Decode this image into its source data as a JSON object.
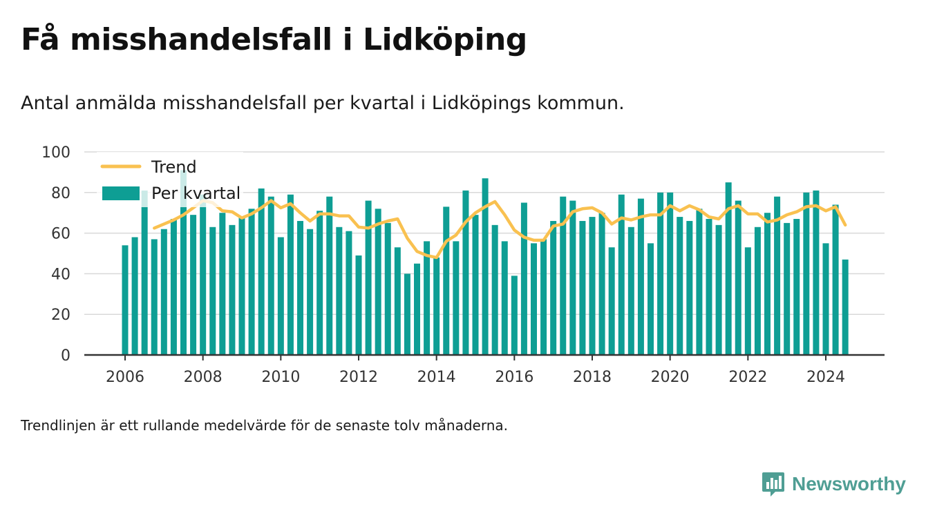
{
  "title": "Få misshandelsfall i Lidköping",
  "subtitle": "Antal anmälda misshandelsfall per kvartal i Lidköpings kommun.",
  "note": "Trendlinjen är ett rullande medelvärde för de senaste tolv månaderna.",
  "brand": "Newsworthy",
  "colors": {
    "bars": "#0e9e94",
    "trend": "#f9c150",
    "grid": "#d9d9d9",
    "axis": "#333333"
  },
  "chart_data": {
    "type": "bar",
    "ylim": [
      0,
      100
    ],
    "yticks": [
      0,
      20,
      40,
      60,
      80,
      100
    ],
    "xticks": [
      2006,
      2008,
      2010,
      2012,
      2014,
      2016,
      2018,
      2020,
      2022,
      2024
    ],
    "xlim": [
      2005,
      2025.5
    ],
    "grid": true,
    "legend_position": "top-left",
    "x": [
      2006.0,
      2006.25,
      2006.5,
      2006.75,
      2007.0,
      2007.25,
      2007.5,
      2007.75,
      2008.0,
      2008.25,
      2008.5,
      2008.75,
      2009.0,
      2009.25,
      2009.5,
      2009.75,
      2010.0,
      2010.25,
      2010.5,
      2010.75,
      2011.0,
      2011.25,
      2011.5,
      2011.75,
      2012.0,
      2012.25,
      2012.5,
      2012.75,
      2013.0,
      2013.25,
      2013.5,
      2013.75,
      2014.0,
      2014.25,
      2014.5,
      2014.75,
      2015.0,
      2015.25,
      2015.5,
      2015.75,
      2016.0,
      2016.25,
      2016.5,
      2016.75,
      2017.0,
      2017.25,
      2017.5,
      2017.75,
      2018.0,
      2018.25,
      2018.5,
      2018.75,
      2019.0,
      2019.25,
      2019.5,
      2019.75,
      2020.0,
      2020.25,
      2020.5,
      2020.75,
      2021.0,
      2021.25,
      2021.5,
      2021.75,
      2022.0,
      2022.25,
      2022.5,
      2022.75,
      2023.0,
      2023.25,
      2023.5,
      2023.75,
      2024.0,
      2024.25,
      2024.5
    ],
    "series": [
      {
        "name": "Per kvartal",
        "type": "bar",
        "values": [
          54,
          58,
          81,
          57,
          62,
          67,
          91,
          69,
          79,
          63,
          70,
          64,
          68,
          72,
          82,
          78,
          58,
          79,
          66,
          62,
          71,
          78,
          63,
          61,
          49,
          76,
          72,
          65,
          53,
          40,
          45,
          56,
          48,
          73,
          56,
          81,
          69,
          87,
          64,
          56,
          39,
          75,
          55,
          57,
          66,
          78,
          76,
          66,
          68,
          70,
          53,
          79,
          63,
          77,
          55,
          80,
          80,
          68,
          66,
          72,
          67,
          64,
          85,
          76,
          53,
          63,
          70,
          78,
          65,
          67,
          80,
          81,
          55,
          74,
          47
        ]
      },
      {
        "name": "Trend",
        "type": "line",
        "values": [
          null,
          null,
          null,
          62.5,
          64.5,
          66.5,
          69,
          72.5,
          76,
          75,
          71,
          70.5,
          67.5,
          69.5,
          72.5,
          76,
          72.5,
          74.5,
          70,
          66,
          69.5,
          69.5,
          68.5,
          68.5,
          63,
          62.5,
          64.5,
          66,
          67,
          57.5,
          51,
          49,
          48,
          56,
          59,
          65.5,
          70,
          73,
          75.5,
          69,
          61.5,
          58,
          56.5,
          56.5,
          63.5,
          64.5,
          70.5,
          72,
          72.5,
          70,
          64.5,
          67.5,
          66.5,
          68,
          69,
          69,
          73.5,
          71,
          73.5,
          71.5,
          68,
          67,
          72,
          73.5,
          69.5,
          69.5,
          65.5,
          66.5,
          69,
          70.5,
          73,
          73.5,
          71,
          73,
          64
        ]
      }
    ]
  }
}
